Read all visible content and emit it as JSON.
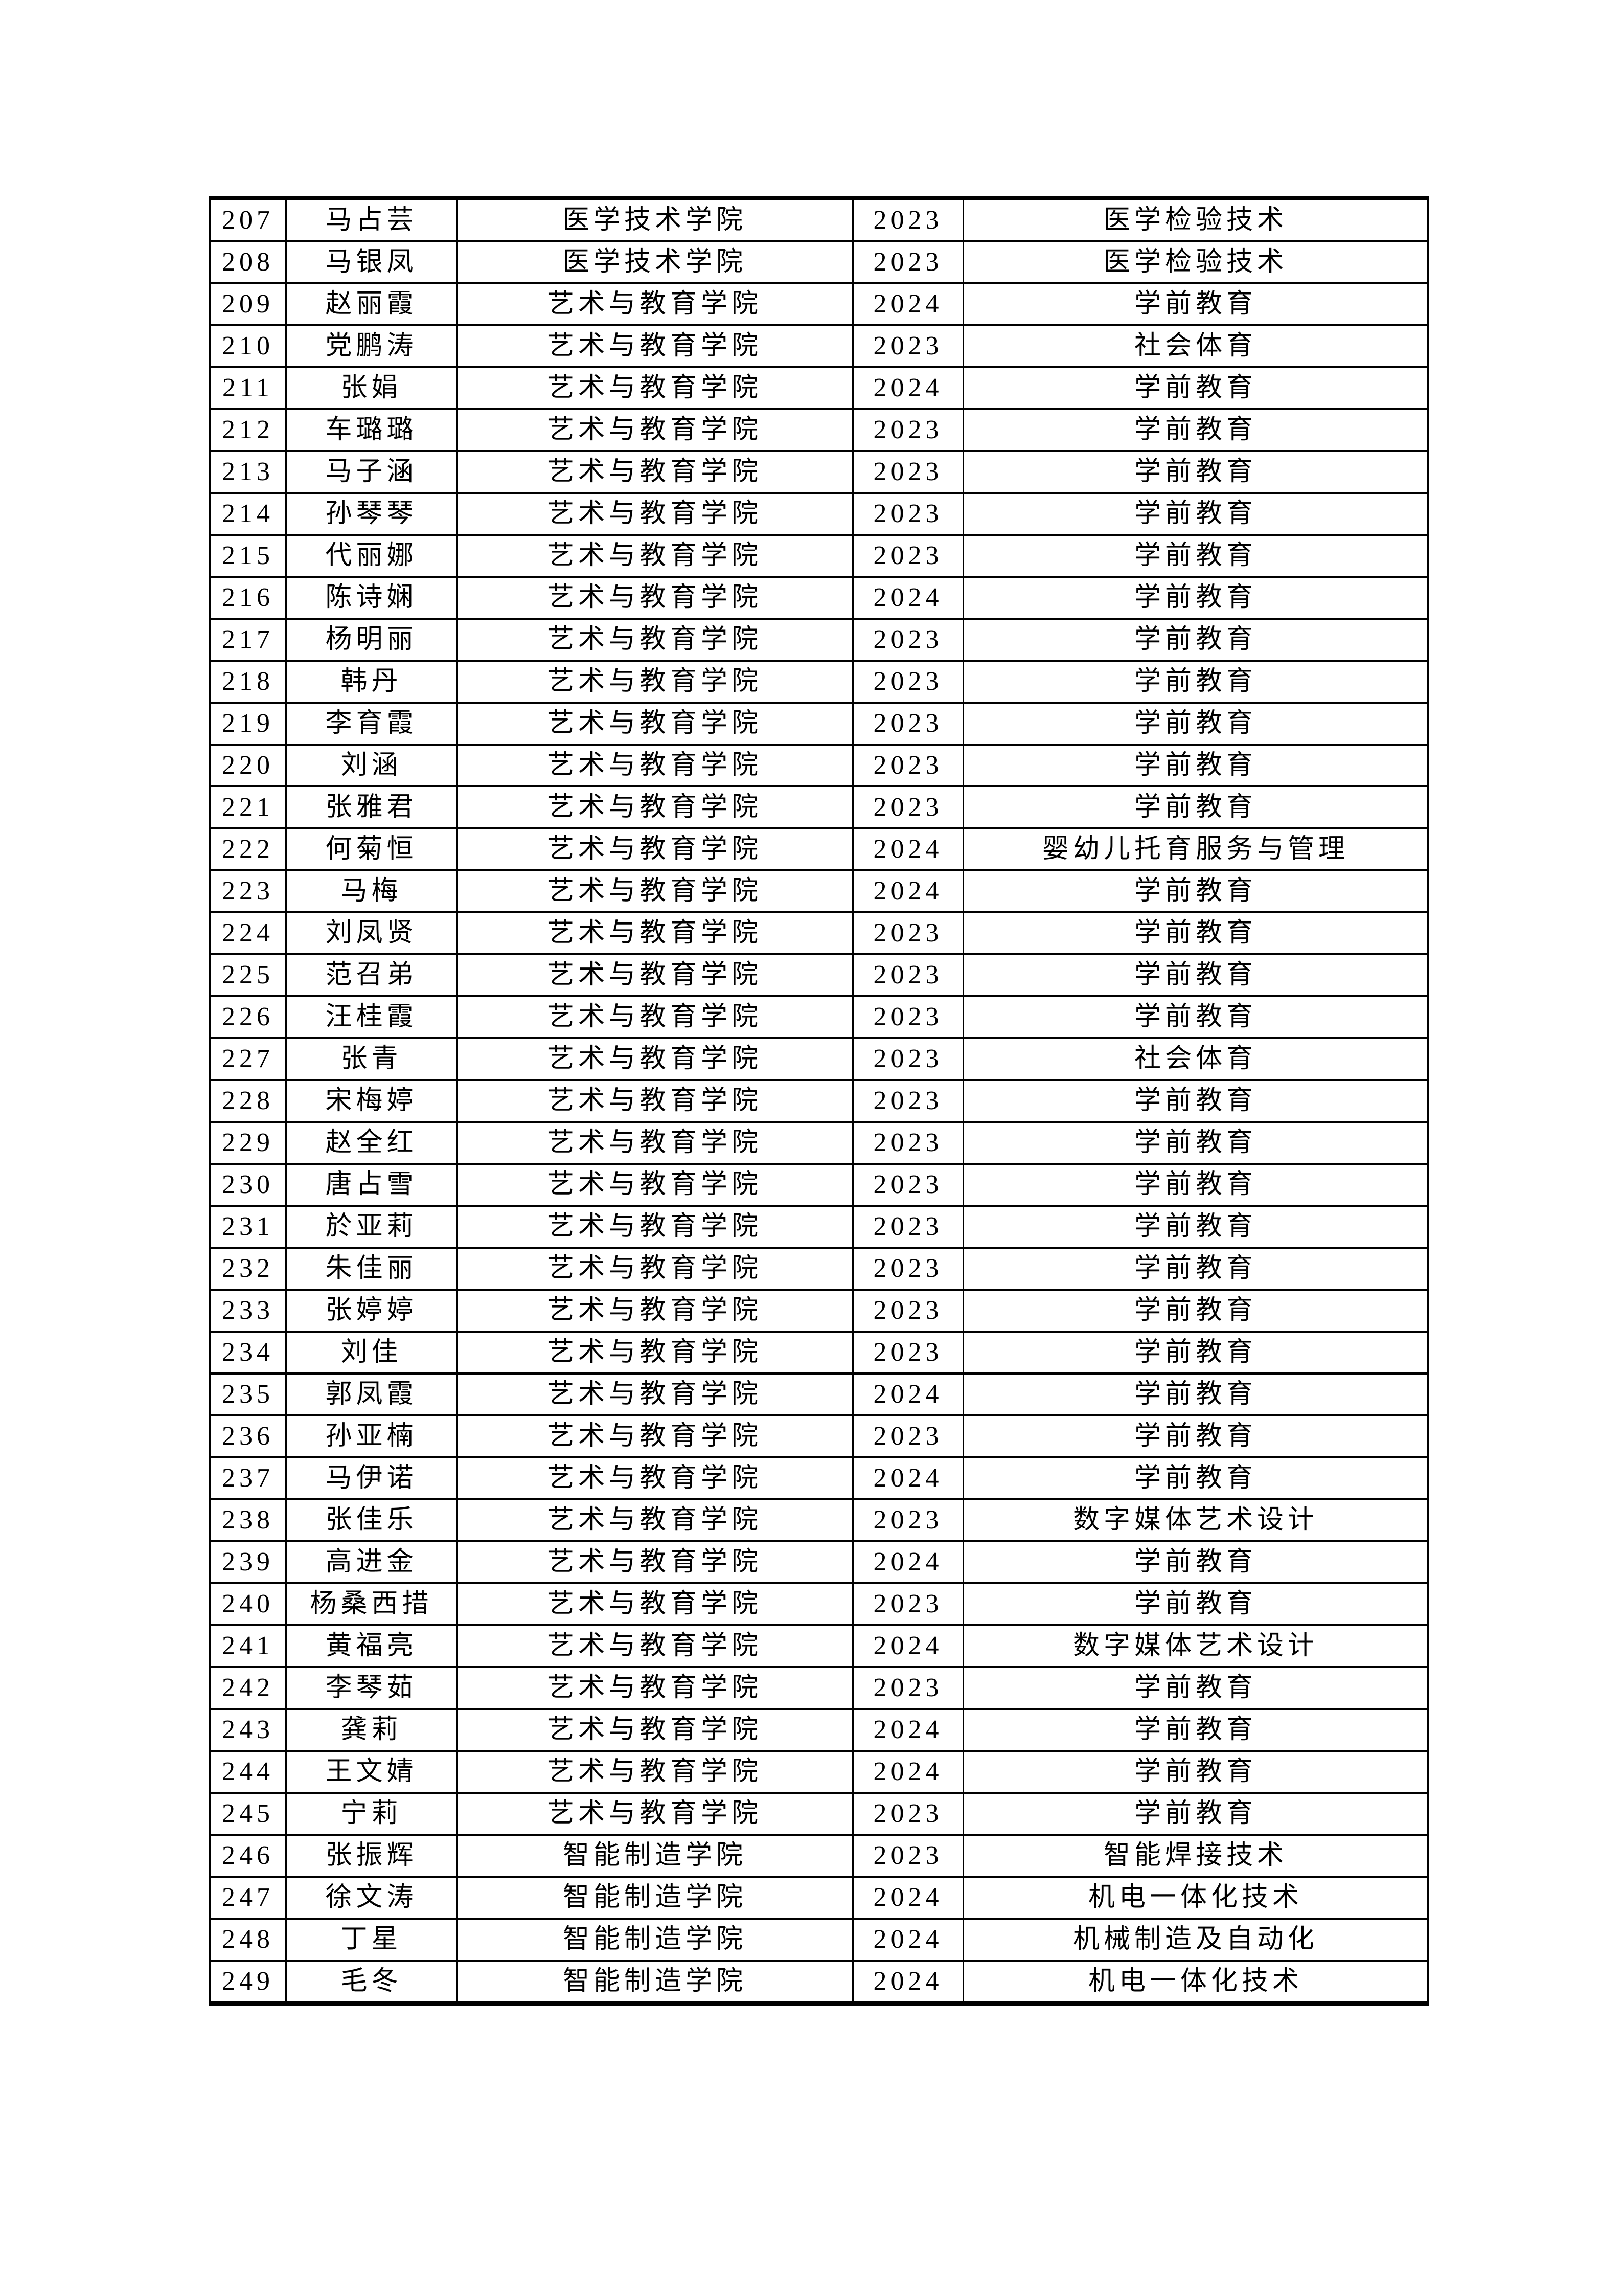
{
  "page": {
    "background": "#ffffff",
    "border_color": "#000000",
    "text_color": "#000000"
  },
  "table": {
    "rows": [
      {
        "no": "207",
        "name": "马占芸",
        "college": "医学技术学院",
        "year": "2023",
        "major": "医学检验技术"
      },
      {
        "no": "208",
        "name": "马银凤",
        "college": "医学技术学院",
        "year": "2023",
        "major": "医学检验技术"
      },
      {
        "no": "209",
        "name": "赵丽霞",
        "college": "艺术与教育学院",
        "year": "2024",
        "major": "学前教育"
      },
      {
        "no": "210",
        "name": "党鹏涛",
        "college": "艺术与教育学院",
        "year": "2023",
        "major": "社会体育"
      },
      {
        "no": "211",
        "name": "张娟",
        "college": "艺术与教育学院",
        "year": "2024",
        "major": "学前教育"
      },
      {
        "no": "212",
        "name": "车璐璐",
        "college": "艺术与教育学院",
        "year": "2023",
        "major": "学前教育"
      },
      {
        "no": "213",
        "name": "马子涵",
        "college": "艺术与教育学院",
        "year": "2023",
        "major": "学前教育"
      },
      {
        "no": "214",
        "name": "孙琴琴",
        "college": "艺术与教育学院",
        "year": "2023",
        "major": "学前教育"
      },
      {
        "no": "215",
        "name": "代丽娜",
        "college": "艺术与教育学院",
        "year": "2023",
        "major": "学前教育"
      },
      {
        "no": "216",
        "name": "陈诗娴",
        "college": "艺术与教育学院",
        "year": "2024",
        "major": "学前教育"
      },
      {
        "no": "217",
        "name": "杨明丽",
        "college": "艺术与教育学院",
        "year": "2023",
        "major": "学前教育"
      },
      {
        "no": "218",
        "name": "韩丹",
        "college": "艺术与教育学院",
        "year": "2023",
        "major": "学前教育"
      },
      {
        "no": "219",
        "name": "李育霞",
        "college": "艺术与教育学院",
        "year": "2023",
        "major": "学前教育"
      },
      {
        "no": "220",
        "name": "刘涵",
        "college": "艺术与教育学院",
        "year": "2023",
        "major": "学前教育"
      },
      {
        "no": "221",
        "name": "张雅君",
        "college": "艺术与教育学院",
        "year": "2023",
        "major": "学前教育"
      },
      {
        "no": "222",
        "name": "何菊恒",
        "college": "艺术与教育学院",
        "year": "2024",
        "major": "婴幼儿托育服务与管理"
      },
      {
        "no": "223",
        "name": "马梅",
        "college": "艺术与教育学院",
        "year": "2024",
        "major": "学前教育"
      },
      {
        "no": "224",
        "name": "刘凤贤",
        "college": "艺术与教育学院",
        "year": "2023",
        "major": "学前教育"
      },
      {
        "no": "225",
        "name": "范召弟",
        "college": "艺术与教育学院",
        "year": "2023",
        "major": "学前教育"
      },
      {
        "no": "226",
        "name": "汪桂霞",
        "college": "艺术与教育学院",
        "year": "2023",
        "major": "学前教育"
      },
      {
        "no": "227",
        "name": "张青",
        "college": "艺术与教育学院",
        "year": "2023",
        "major": "社会体育"
      },
      {
        "no": "228",
        "name": "宋梅婷",
        "college": "艺术与教育学院",
        "year": "2023",
        "major": "学前教育"
      },
      {
        "no": "229",
        "name": "赵全红",
        "college": "艺术与教育学院",
        "year": "2023",
        "major": "学前教育"
      },
      {
        "no": "230",
        "name": "唐占雪",
        "college": "艺术与教育学院",
        "year": "2023",
        "major": "学前教育"
      },
      {
        "no": "231",
        "name": "於亚莉",
        "college": "艺术与教育学院",
        "year": "2023",
        "major": "学前教育"
      },
      {
        "no": "232",
        "name": "朱佳丽",
        "college": "艺术与教育学院",
        "year": "2023",
        "major": "学前教育"
      },
      {
        "no": "233",
        "name": "张婷婷",
        "college": "艺术与教育学院",
        "year": "2023",
        "major": "学前教育"
      },
      {
        "no": "234",
        "name": "刘佳",
        "college": "艺术与教育学院",
        "year": "2023",
        "major": "学前教育"
      },
      {
        "no": "235",
        "name": "郭凤霞",
        "college": "艺术与教育学院",
        "year": "2024",
        "major": "学前教育"
      },
      {
        "no": "236",
        "name": "孙亚楠",
        "college": "艺术与教育学院",
        "year": "2023",
        "major": "学前教育"
      },
      {
        "no": "237",
        "name": "马伊诺",
        "college": "艺术与教育学院",
        "year": "2024",
        "major": "学前教育"
      },
      {
        "no": "238",
        "name": "张佳乐",
        "college": "艺术与教育学院",
        "year": "2023",
        "major": "数字媒体艺术设计"
      },
      {
        "no": "239",
        "name": "高进金",
        "college": "艺术与教育学院",
        "year": "2024",
        "major": "学前教育"
      },
      {
        "no": "240",
        "name": "杨桑西措",
        "college": "艺术与教育学院",
        "year": "2023",
        "major": "学前教育"
      },
      {
        "no": "241",
        "name": "黄福亮",
        "college": "艺术与教育学院",
        "year": "2024",
        "major": "数字媒体艺术设计"
      },
      {
        "no": "242",
        "name": "李琴茹",
        "college": "艺术与教育学院",
        "year": "2023",
        "major": "学前教育"
      },
      {
        "no": "243",
        "name": "龚莉",
        "college": "艺术与教育学院",
        "year": "2024",
        "major": "学前教育"
      },
      {
        "no": "244",
        "name": "王文婧",
        "college": "艺术与教育学院",
        "year": "2024",
        "major": "学前教育"
      },
      {
        "no": "245",
        "name": "宁莉",
        "college": "艺术与教育学院",
        "year": "2023",
        "major": "学前教育"
      },
      {
        "no": "246",
        "name": "张振辉",
        "college": "智能制造学院",
        "year": "2023",
        "major": "智能焊接技术"
      },
      {
        "no": "247",
        "name": "徐文涛",
        "college": "智能制造学院",
        "year": "2024",
        "major": "机电一体化技术"
      },
      {
        "no": "248",
        "name": "丁星",
        "college": "智能制造学院",
        "year": "2024",
        "major": "机械制造及自动化"
      },
      {
        "no": "249",
        "name": "毛冬",
        "college": "智能制造学院",
        "year": "2024",
        "major": "机电一体化技术"
      }
    ]
  }
}
